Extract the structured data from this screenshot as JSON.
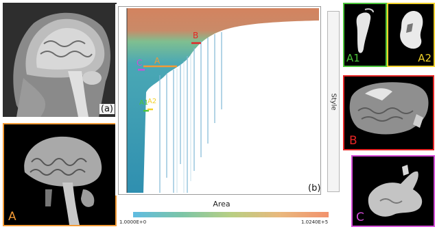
{
  "panel_a": {
    "tag": "(a)"
  },
  "panel_A": {
    "tag": "A",
    "color": "#f39a35"
  },
  "viewer": {
    "tag": "(b)",
    "style_label": "Style",
    "markers": [
      {
        "label": "B",
        "color": "#e52525"
      },
      {
        "label": "C",
        "color": "#d44ad8"
      },
      {
        "label": "A",
        "color": "#f39a35"
      },
      {
        "label": "A1",
        "color": "#4cc53a"
      },
      {
        "label": "A2",
        "color": "#f1d22a"
      }
    ]
  },
  "colorbar": {
    "title": "Area",
    "min_label": "1.0000E+0",
    "max_label": "1.0240E+5",
    "colors": [
      "#5fbbe1",
      "#7cc5a7",
      "#b8cf83",
      "#e9b87d",
      "#f2926d"
    ]
  },
  "panel_A1": {
    "tag": "A1",
    "color": "#4cc53a"
  },
  "panel_A2": {
    "tag": "A2",
    "color": "#f1d22a"
  },
  "panel_B": {
    "tag": "B",
    "color": "#e52525"
  },
  "panel_C": {
    "tag": "C",
    "color": "#d44ad8"
  }
}
